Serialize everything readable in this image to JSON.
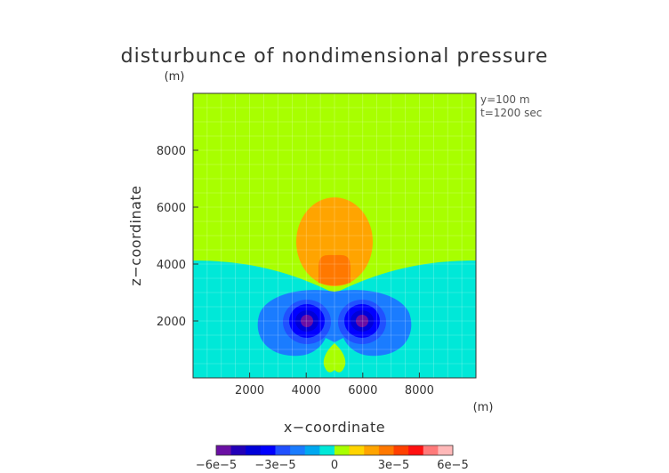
{
  "chart_data": {
    "type": "heatmap",
    "title": "disturbunce of nondimensional pressure",
    "xlabel": "x−coordinate",
    "ylabel": "z−coordinate",
    "x_unit": "(m)",
    "z_unit": "(m)",
    "annotation_y": "y=100 m",
    "annotation_t": "t=1200 sec",
    "x_ticks": [
      2000,
      4000,
      6000,
      8000
    ],
    "y_ticks": [
      2000,
      4000,
      6000,
      8000
    ],
    "xlim": [
      0,
      10000
    ],
    "ylim": [
      0,
      10000
    ],
    "colorbar": {
      "ticks": [
        "−6e−5",
        "−3e−5",
        "0",
        "3e−5",
        "6e−5"
      ],
      "range": [
        -6e-05,
        6e-05
      ],
      "colors": [
        "#6a0fa3",
        "#2200b8",
        "#0000d8",
        "#0000ff",
        "#2050ff",
        "#1a7cff",
        "#00a8f0",
        "#00e8d8",
        "#a8ff00",
        "#ffd400",
        "#ffa400",
        "#ff7800",
        "#ff4000",
        "#ff1010",
        "#ff7a7a",
        "#ffb8b8"
      ]
    },
    "regions": [
      {
        "name": "upper background",
        "value": 5e-06
      },
      {
        "name": "lower background",
        "value": -5e-06
      },
      {
        "name": "central high",
        "value": 2.5e-05,
        "center": [
          5000,
          4900
        ]
      },
      {
        "name": "central high core",
        "value": 3.5e-05,
        "center": [
          5000,
          3900
        ]
      },
      {
        "name": "left low",
        "value": -5.5e-05,
        "center": [
          4050,
          2050
        ]
      },
      {
        "name": "right low",
        "value": -5.5e-05,
        "center": [
          5950,
          2050
        ]
      },
      {
        "name": "bottom high",
        "value": 5e-06,
        "center": [
          5000,
          700
        ]
      }
    ]
  }
}
